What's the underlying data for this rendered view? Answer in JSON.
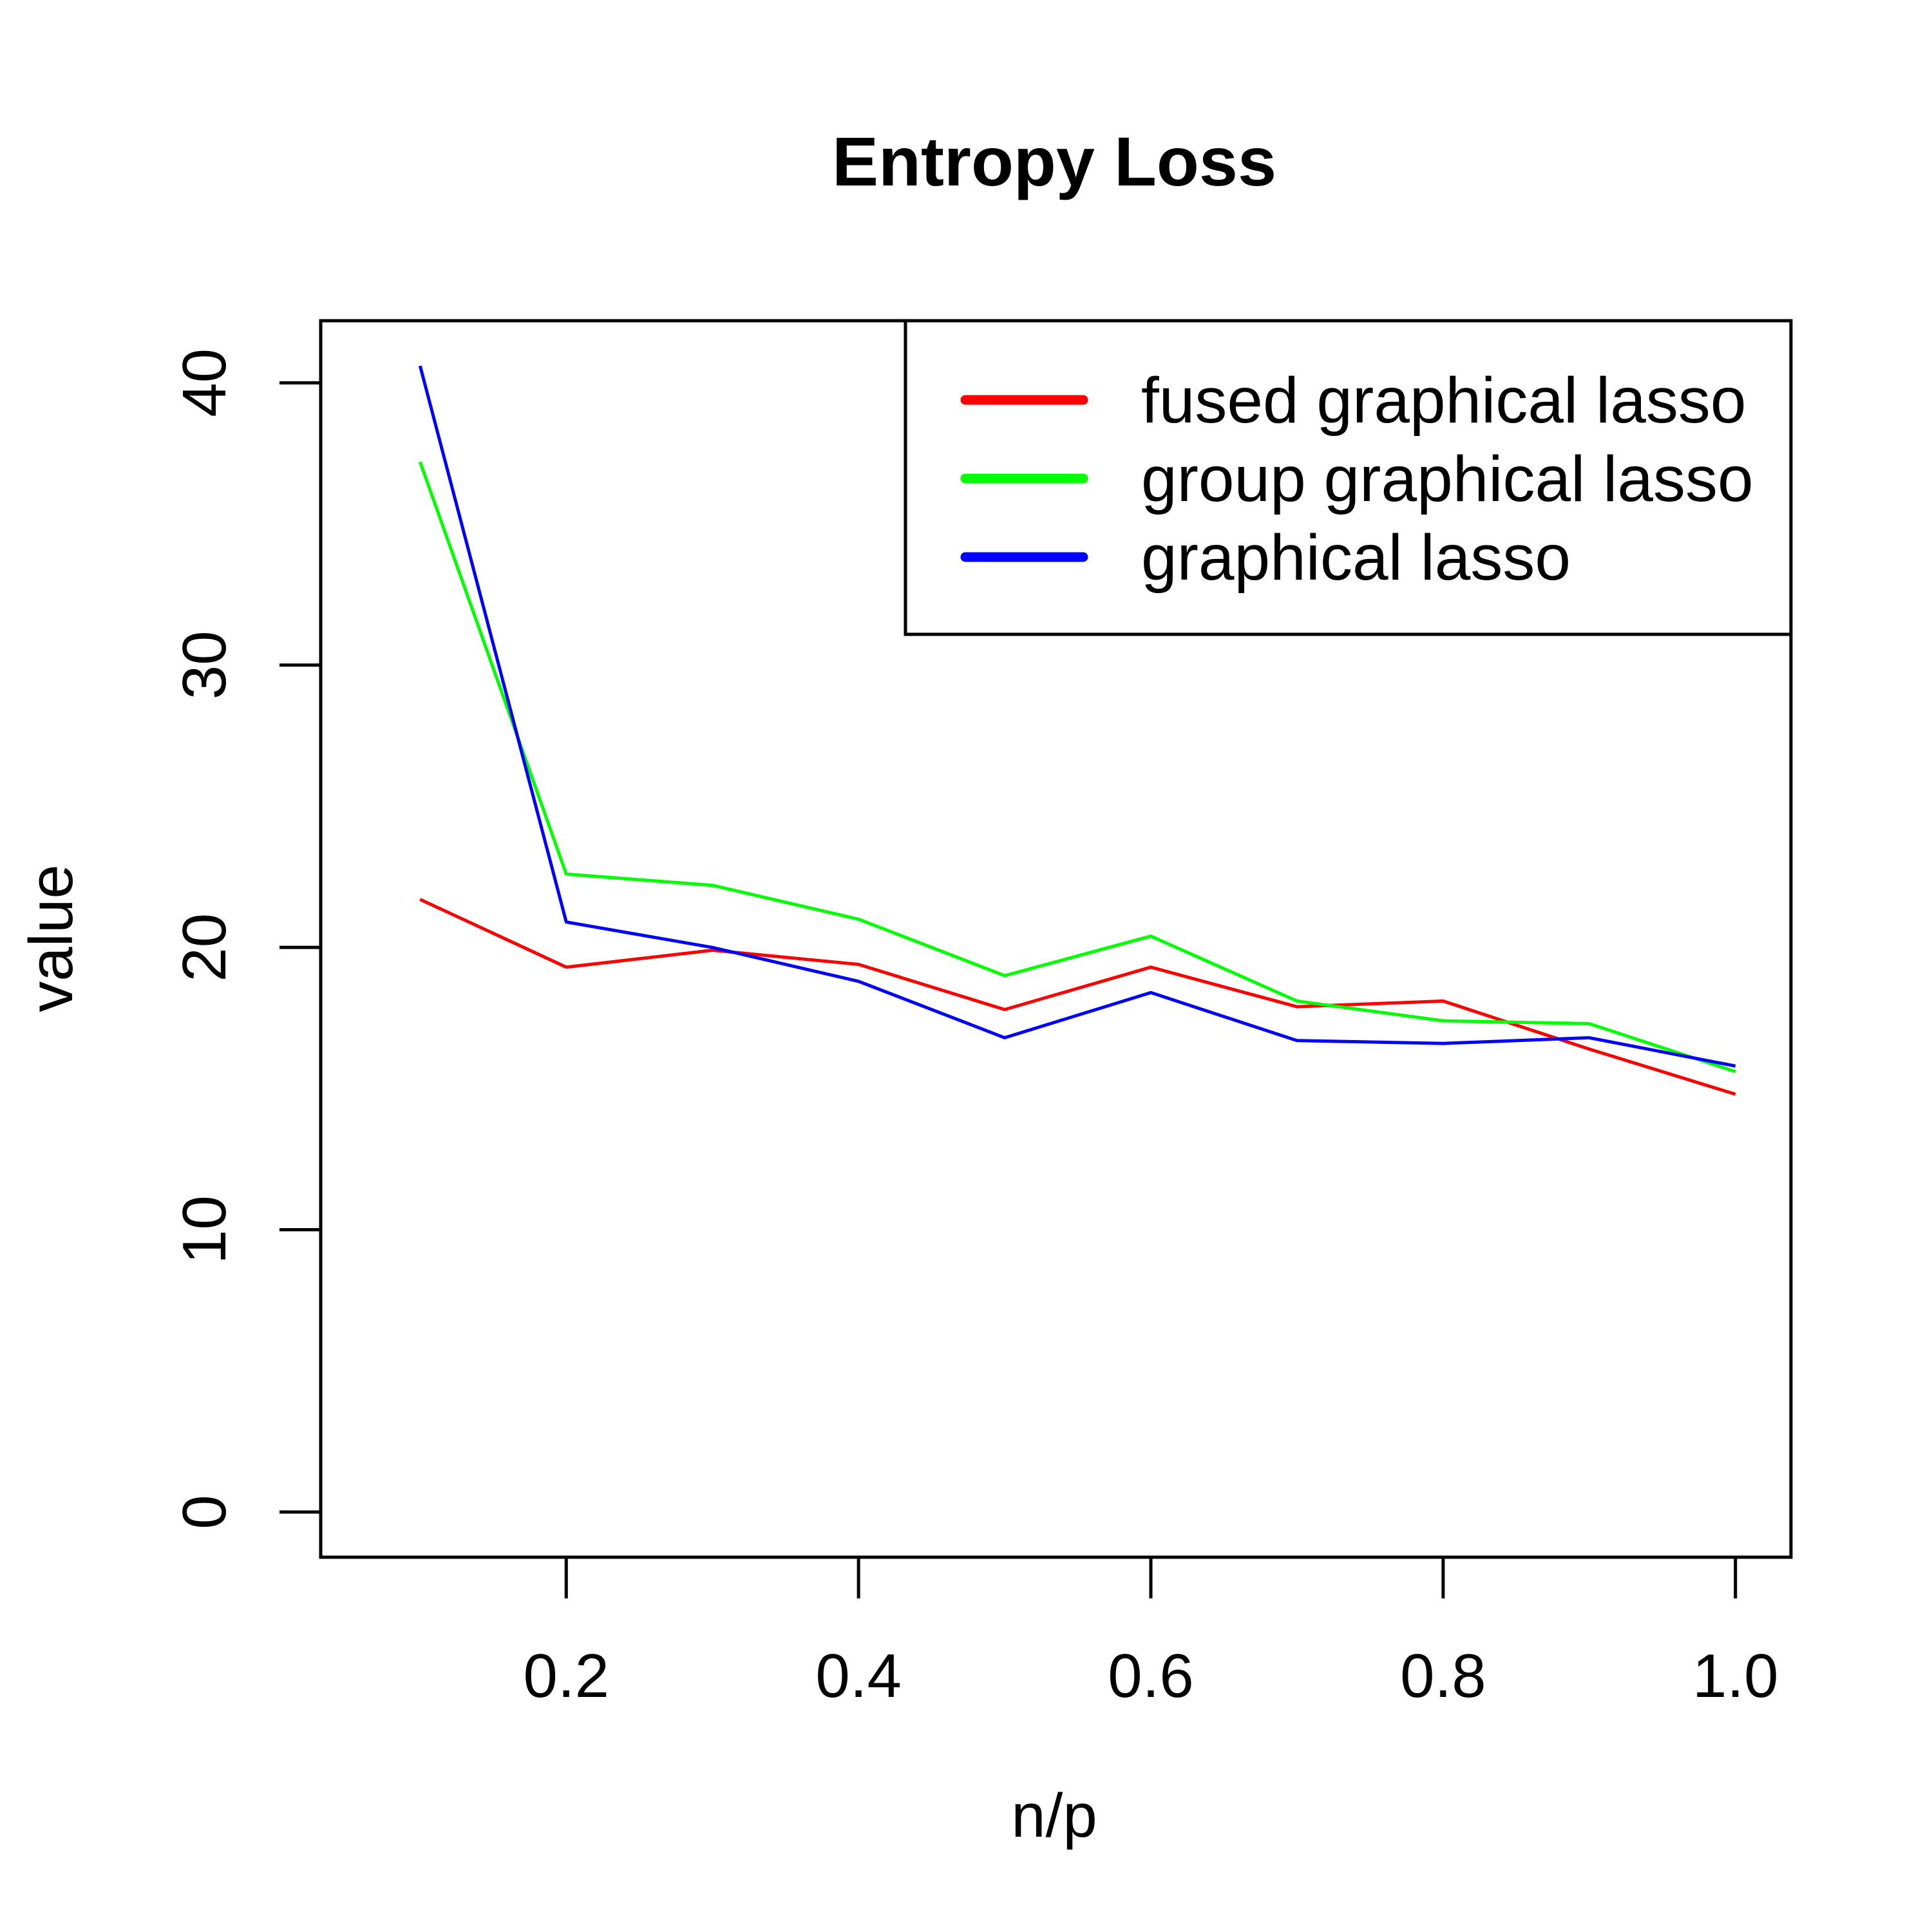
{
  "chart_data": {
    "type": "line",
    "title": "Entropy Loss",
    "xlabel": "n/p",
    "ylabel": "value",
    "x": [
      0.1,
      0.2,
      0.3,
      0.4,
      0.5,
      0.6,
      0.7,
      0.8,
      0.9,
      1.0
    ],
    "xlim": [
      0.032,
      1.038
    ],
    "ylim": [
      -1.6,
      42.2
    ],
    "xticks": [
      "0.2",
      "0.4",
      "0.6",
      "0.8",
      "1.0"
    ],
    "yticks": [
      "0",
      "10",
      "20",
      "30",
      "40"
    ],
    "grid": false,
    "legend_position": "top-right",
    "series": [
      {
        "name": "fused graphical lasso",
        "color": "#ff0000",
        "values": [
          21.7,
          19.3,
          19.9,
          19.4,
          17.8,
          19.3,
          17.9,
          18.1,
          16.4,
          14.8
        ]
      },
      {
        "name": "group graphical lasso",
        "color": "#00ff00",
        "values": [
          37.2,
          22.6,
          22.2,
          21.0,
          19.0,
          20.4,
          18.1,
          17.4,
          17.3,
          15.6
        ]
      },
      {
        "name": "graphical lasso",
        "color": "#0000ff",
        "values": [
          40.6,
          20.9,
          20.0,
          18.8,
          16.8,
          18.4,
          16.7,
          16.6,
          16.8,
          15.8
        ]
      }
    ]
  }
}
